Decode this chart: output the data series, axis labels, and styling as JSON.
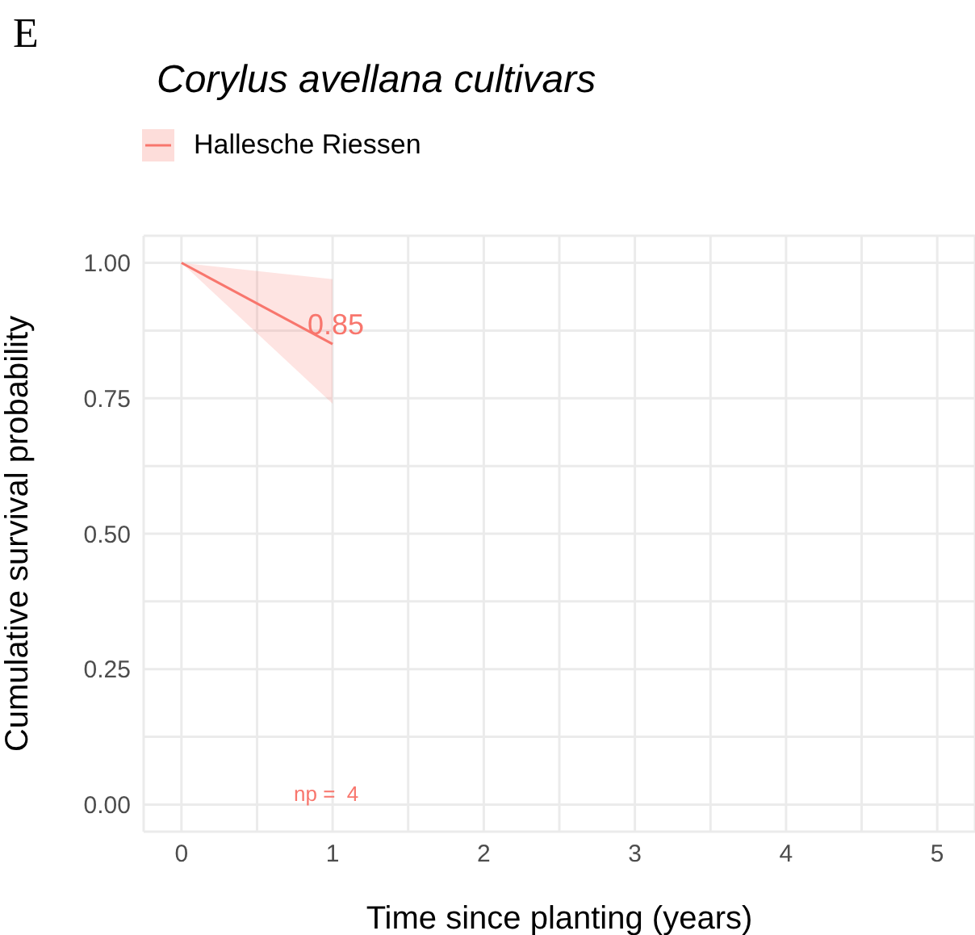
{
  "chart_data": {
    "type": "line",
    "title": "Corylus avellana cultivars",
    "xlabel": "Time since planting (years)",
    "ylabel": "Cumulative survival probability",
    "x": [
      0,
      1
    ],
    "series": [
      {
        "name": "Hallesche Riessen",
        "color": "#f8766d",
        "values": [
          1,
          0.85
        ],
        "value_labels": [
          null,
          "0.85"
        ],
        "lower": [
          1,
          0.74
        ],
        "upper": [
          1,
          0.97
        ]
      }
    ],
    "annotations": [
      "E",
      "np =  4"
    ],
    "xlim": [
      -0.25,
      5.25
    ],
    "xticks": [
      0,
      {
        "value": 0.5,
        "label": null
      },
      1,
      {
        "value": 1.5,
        "label": null
      },
      2,
      {
        "value": 2.5,
        "label": null
      },
      3,
      {
        "value": 3.5,
        "label": null
      },
      4,
      {
        "value": 4.5,
        "label": null
      },
      5
    ],
    "ylim": [
      -0.05,
      1.05
    ],
    "yticks": [
      "0.00",
      {
        "value": 0.125,
        "label": null
      },
      {
        "value": 0.25,
        "label": "0.25"
      },
      {
        "value": 0.375,
        "label": null
      },
      {
        "value": 0.5,
        "label": "0.50"
      },
      {
        "value": 0.625,
        "label": null
      },
      {
        "value": 0.75,
        "label": "0.75"
      },
      {
        "value": 0.875,
        "label": null
      },
      {
        "value": 1,
        "label": "1.00"
      }
    ],
    "grid": true,
    "legend": "top left",
    "marker": "none",
    "line_style": "solid"
  }
}
